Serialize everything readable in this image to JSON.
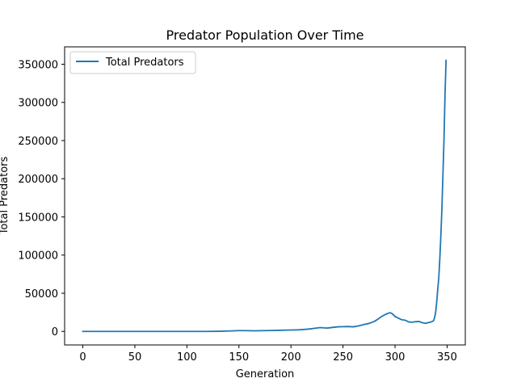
{
  "chart_data": {
    "type": "line",
    "title": "Predator Population Over Time",
    "xlabel": "Generation",
    "ylabel": "Total Predators",
    "xlim": [
      -17.5,
      367.5
    ],
    "ylim": [
      -17750,
      372750
    ],
    "xticks": [
      0,
      50,
      100,
      150,
      200,
      250,
      300,
      350
    ],
    "xtick_labels": [
      "0",
      "50",
      "100",
      "150",
      "200",
      "250",
      "300",
      "350"
    ],
    "yticks": [
      0,
      50000,
      100000,
      150000,
      200000,
      250000,
      300000,
      350000
    ],
    "ytick_labels": [
      "0",
      "50000",
      "100000",
      "150000",
      "200000",
      "250000",
      "300000",
      "350000"
    ],
    "grid": false,
    "legend": {
      "position": "upper-left",
      "entries": [
        "Total Predators"
      ]
    },
    "series": [
      {
        "name": "Total Predators",
        "color": "#1f77b4",
        "x": [
          0,
          20,
          40,
          60,
          80,
          100,
          120,
          130,
          140,
          145,
          150,
          155,
          160,
          165,
          170,
          180,
          190,
          200,
          205,
          210,
          215,
          220,
          225,
          228,
          232,
          235,
          240,
          245,
          250,
          255,
          260,
          265,
          270,
          275,
          280,
          283,
          286,
          289,
          292,
          295,
          297,
          300,
          303,
          306,
          310,
          313,
          316,
          320,
          323,
          326,
          329,
          332,
          335,
          337,
          338,
          339,
          340,
          341,
          342,
          343,
          344,
          345,
          346,
          347,
          348,
          349
        ],
        "y": [
          0,
          0,
          0,
          0,
          0,
          0,
          0,
          200,
          500,
          800,
          1000,
          1000,
          900,
          800,
          900,
          1200,
          1500,
          1800,
          2000,
          2300,
          2800,
          3500,
          4500,
          5000,
          4600,
          4400,
          5200,
          6000,
          6200,
          6400,
          6000,
          7200,
          9000,
          10500,
          13000,
          15500,
          18500,
          21000,
          23000,
          24500,
          23500,
          19500,
          17500,
          15500,
          14500,
          12500,
          12000,
          12800,
          13000,
          11500,
          10500,
          11500,
          12500,
          14000,
          18000,
          25000,
          38000,
          55000,
          70000,
          95000,
          125000,
          160000,
          205000,
          250000,
          310000,
          355000
        ]
      }
    ]
  }
}
